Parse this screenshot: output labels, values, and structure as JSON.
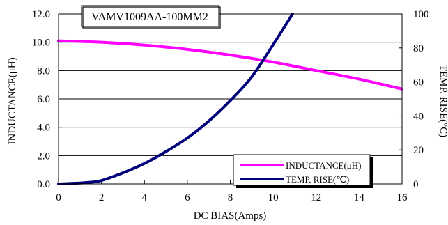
{
  "chart_data": {
    "type": "line",
    "title": "VAMV1009AA-100MM2",
    "xlabel": "DC BIAS(Amps)",
    "ylabel_left": "INDUCTANCE(μH)",
    "ylabel_right": "TEMP. RISE(°C)",
    "xlim": [
      0,
      16
    ],
    "ylim_left": [
      0,
      12
    ],
    "ylim_right": [
      0,
      100
    ],
    "x_ticks": [
      "0",
      "2",
      "4",
      "6",
      "8",
      "10",
      "12",
      "14",
      "16"
    ],
    "y_left_ticks": [
      "0.0",
      "2.0",
      "4.0",
      "6.0",
      "8.0",
      "10.0",
      "12.0"
    ],
    "y_right_ticks": [
      "0",
      "20",
      "40",
      "60",
      "80",
      "100"
    ],
    "grid": "horizontal",
    "legend_position": "lower-right",
    "series": [
      {
        "name": "INDUCTANCE(μH)",
        "axis": "left",
        "color": "#ff00ff",
        "x": [
          0,
          2,
          4,
          6,
          8,
          10,
          12,
          14,
          16
        ],
        "y": [
          10.1,
          10.0,
          9.8,
          9.5,
          9.1,
          8.6,
          8.0,
          7.4,
          6.7
        ]
      },
      {
        "name": "TEMP. RISE(℃)",
        "axis": "right",
        "color": "#00007a",
        "x": [
          0,
          1,
          1.5,
          2,
          3,
          4,
          5,
          6,
          7,
          8,
          9,
          10,
          10.9
        ],
        "y": [
          0,
          0.5,
          1,
          2,
          6.5,
          12,
          19,
          27,
          37,
          49,
          63,
          82,
          100
        ]
      }
    ]
  }
}
